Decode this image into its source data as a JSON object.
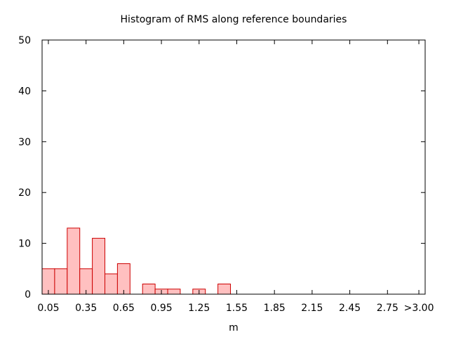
{
  "chart_data": {
    "type": "bar",
    "title": "Histogram of RMS along reference boundaries",
    "xlabel": "m",
    "ylabel": "",
    "ylim": [
      0,
      50
    ],
    "yticks": [
      0,
      10,
      20,
      30,
      40,
      50
    ],
    "xlim": [
      0.0,
      3.05
    ],
    "bin_width": 0.1,
    "xtick_labels": [
      {
        "value": 0.05,
        "label": "0.05"
      },
      {
        "value": 0.35,
        "label": "0.35"
      },
      {
        "value": 0.65,
        "label": "0.65"
      },
      {
        "value": 0.95,
        "label": "0.95"
      },
      {
        "value": 1.25,
        "label": "1.25"
      },
      {
        "value": 1.55,
        "label": "1.55"
      },
      {
        "value": 1.85,
        "label": "1.85"
      },
      {
        "value": 2.15,
        "label": "2.15"
      },
      {
        "value": 2.45,
        "label": "2.45"
      },
      {
        "value": 2.75,
        "label": "2.75"
      },
      {
        "value": 3.0,
        "label": ">3.00"
      }
    ],
    "bins": [
      {
        "x": 0.05,
        "count": 5
      },
      {
        "x": 0.15,
        "count": 5
      },
      {
        "x": 0.25,
        "count": 13
      },
      {
        "x": 0.35,
        "count": 5
      },
      {
        "x": 0.45,
        "count": 11
      },
      {
        "x": 0.55,
        "count": 4
      },
      {
        "x": 0.65,
        "count": 6
      },
      {
        "x": 0.75,
        "count": 0
      },
      {
        "x": 0.85,
        "count": 2
      },
      {
        "x": 0.95,
        "count": 1
      },
      {
        "x": 1.05,
        "count": 1
      },
      {
        "x": 1.15,
        "count": 0
      },
      {
        "x": 1.25,
        "count": 1
      },
      {
        "x": 1.35,
        "count": 0
      },
      {
        "x": 1.45,
        "count": 2
      }
    ],
    "bar_fill": "#ffc0c0",
    "bar_stroke": "#cc0000",
    "grid": false
  }
}
